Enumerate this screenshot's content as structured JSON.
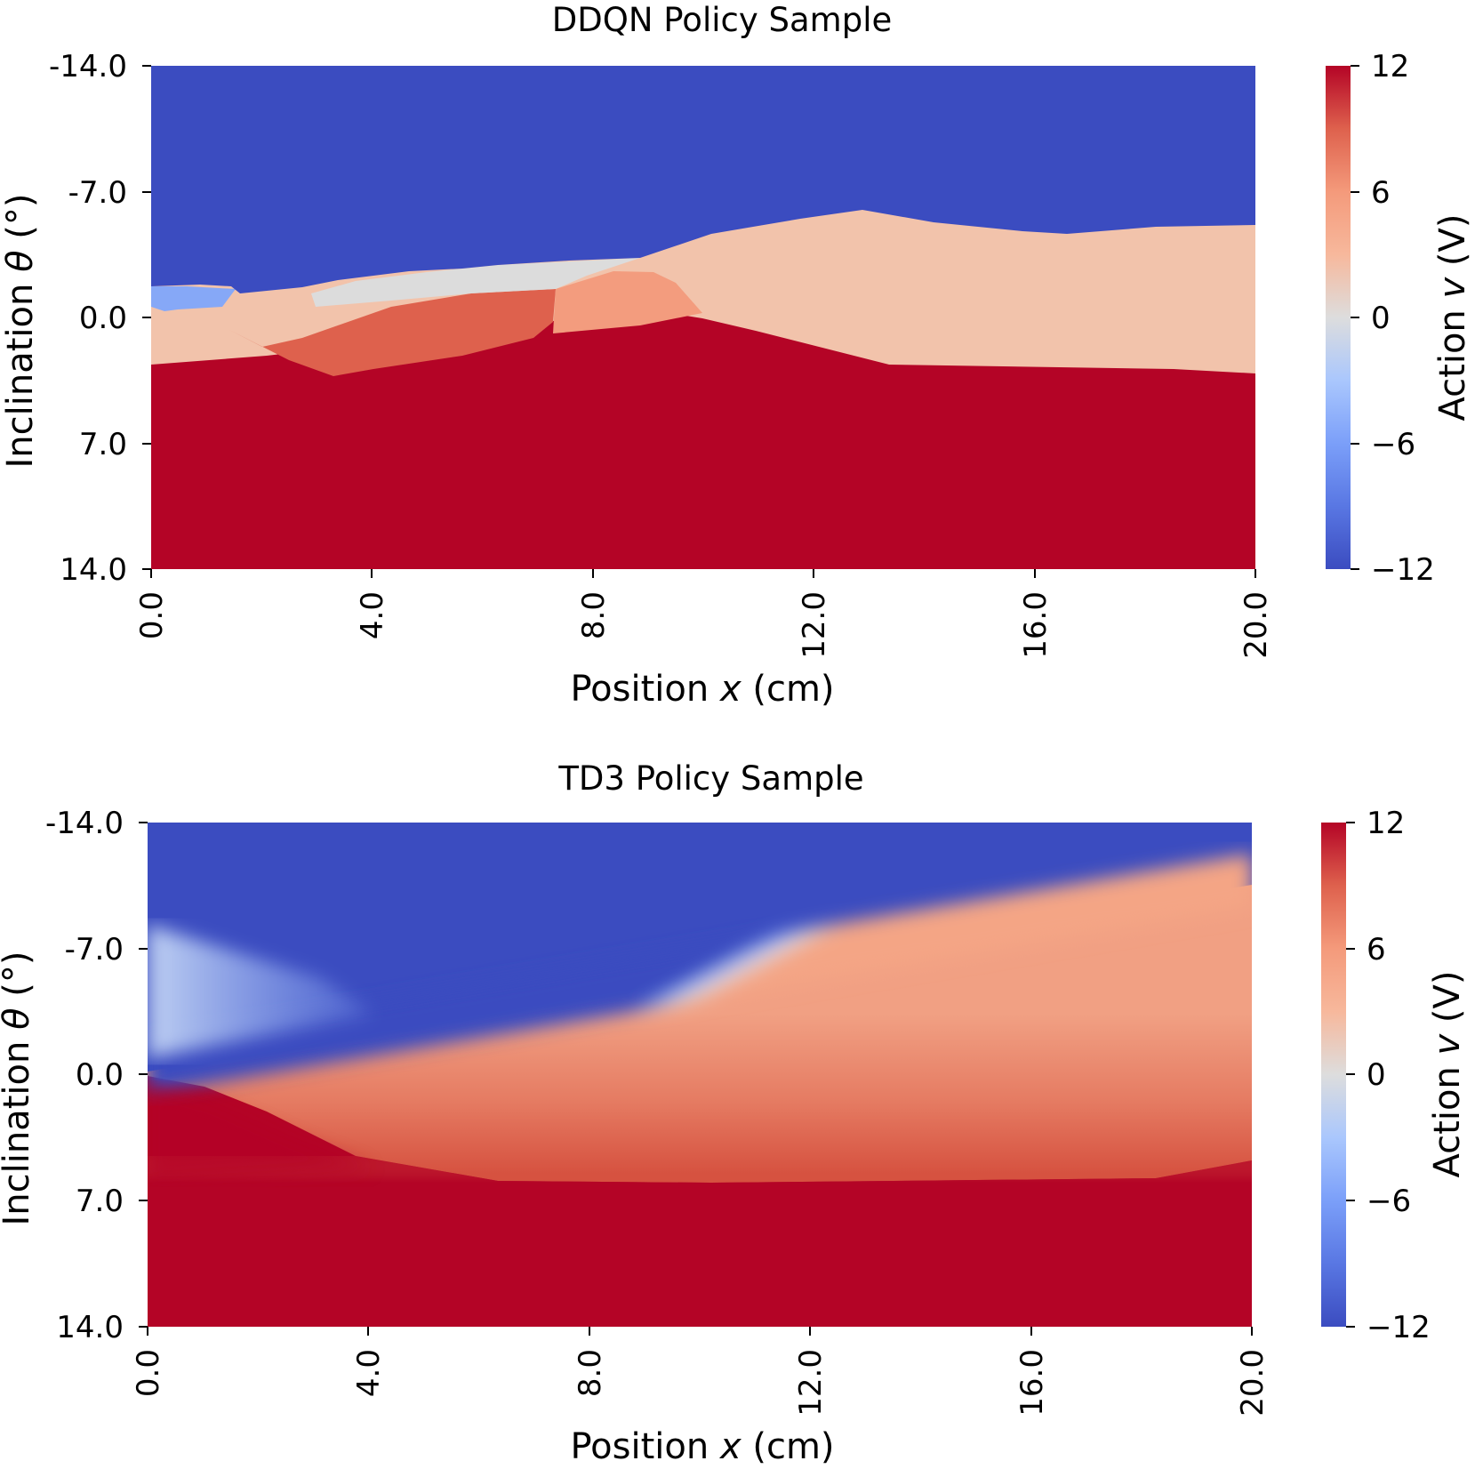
{
  "colormap": {
    "name": "coolwarm",
    "stops": [
      [
        0.0,
        "#3b4cc0"
      ],
      [
        0.25,
        "#7b9ff9"
      ],
      [
        0.5,
        "#dddddd"
      ],
      [
        0.75,
        "#f49a7b"
      ],
      [
        1.0,
        "#b40426"
      ]
    ]
  },
  "chart_data": [
    {
      "type": "heatmap",
      "title": "DDQN Policy Sample",
      "xlabel_prefix": "Position ",
      "xlabel_var": "x",
      "xlabel_suffix": " (cm)",
      "ylabel_prefix": "Inclination ",
      "ylabel_var": "θ",
      "ylabel_suffix": " (°)",
      "xlim": [
        0,
        20
      ],
      "ylim": [
        -14,
        14
      ],
      "x_ticks": [
        "0.0",
        "4.0",
        "8.0",
        "12.0",
        "16.0",
        "20.0"
      ],
      "y_ticks": [
        "-14.0",
        "-7.0",
        "0.0",
        "7.0",
        "14.0"
      ],
      "colorbar": {
        "label_prefix": "Action ",
        "label_var": "v",
        "label_suffix": " (V)",
        "ticks": [
          "12",
          "6",
          "0",
          "−6",
          "−12"
        ],
        "range": [
          -12,
          12
        ]
      },
      "regions": [
        {
          "name": "max-negative",
          "value": -12,
          "boundary": [
            [
              0,
              -1.8
            ],
            [
              1.5,
              -1.3
            ],
            [
              3,
              -2
            ],
            [
              6,
              -2.8
            ],
            [
              9,
              -3.5
            ],
            [
              13,
              -6
            ],
            [
              16.5,
              -4.6
            ],
            [
              20,
              -5.1
            ]
          ]
        },
        {
          "name": "low-negative",
          "value": -6.5,
          "x_range": [
            0,
            1.5
          ]
        },
        {
          "name": "neutral",
          "value": 0,
          "x_range": [
            3,
            8.5
          ]
        },
        {
          "name": "light-positive",
          "value": 4,
          "boundary": [
            [
              0,
              -0.5
            ],
            [
              2,
              -1.8
            ],
            [
              5,
              -2.1
            ],
            [
              8,
              -2.6
            ],
            [
              10,
              -1.8
            ],
            [
              13.5,
              -1.5
            ],
            [
              20,
              -1.3
            ]
          ]
        },
        {
          "name": "mid-positive",
          "value": 7,
          "x_range": [
            7.5,
            10
          ]
        },
        {
          "name": "strong-positive",
          "value": 9,
          "x_range": [
            2,
            7.5
          ]
        },
        {
          "name": "max-positive",
          "value": 12,
          "boundary": [
            [
              0,
              1.8
            ],
            [
              1.7,
              0.4
            ],
            [
              3.3,
              3
            ],
            [
              7.5,
              0.8
            ],
            [
              10,
              -0.4
            ],
            [
              13.5,
              -1.5
            ],
            [
              20,
              -1.2
            ]
          ]
        }
      ]
    },
    {
      "type": "heatmap",
      "title": "TD3 Policy Sample",
      "xlabel_prefix": "Position ",
      "xlabel_var": "x",
      "xlabel_suffix": " (cm)",
      "ylabel_prefix": "Inclination ",
      "ylabel_var": "θ",
      "ylabel_suffix": " (°)",
      "xlim": [
        0,
        20
      ],
      "ylim": [
        -14,
        14
      ],
      "x_ticks": [
        "0.0",
        "4.0",
        "8.0",
        "12.0",
        "16.0",
        "20.0"
      ],
      "y_ticks": [
        "-14.0",
        "-7.0",
        "0.0",
        "7.0",
        "14.0"
      ],
      "colorbar": {
        "label_prefix": "Action ",
        "label_var": "v",
        "label_suffix": " (V)",
        "ticks": [
          "12",
          "6",
          "0",
          "−6",
          "−12"
        ],
        "range": [
          -12,
          12
        ]
      },
      "zero_crossing_line": [
        [
          0,
          0.2
        ],
        [
          20,
          -10
        ]
      ],
      "saturation_boundary": [
        [
          0,
          2.2
        ],
        [
          2,
          3
        ],
        [
          4,
          4.8
        ],
        [
          7,
          5.6
        ],
        [
          20,
          5.6
        ]
      ],
      "plateau_value": 8
    }
  ]
}
